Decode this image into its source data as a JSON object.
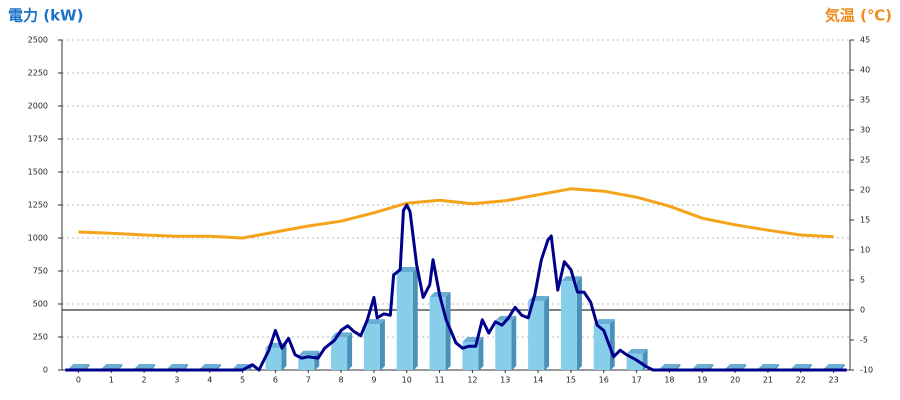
{
  "chart_data": {
    "type": "bar",
    "y_axis_title": "電力 (kW)",
    "y2_axis_title": "気温 (℃)",
    "categories": [
      "0",
      "1",
      "2",
      "3",
      "4",
      "5",
      "6",
      "7",
      "8",
      "9",
      "10",
      "11",
      "12",
      "13",
      "14",
      "15",
      "16",
      "17",
      "18",
      "19",
      "20",
      "21",
      "22",
      "23"
    ],
    "series": [
      {
        "type": "bar",
        "color": "#87ceeb",
        "values": [
          0,
          0,
          0,
          0,
          0,
          0,
          160,
          100,
          240,
          340,
          735,
          545,
          205,
          365,
          515,
          665,
          340,
          115,
          0,
          0,
          0,
          0,
          0,
          0
        ]
      },
      {
        "type": "line",
        "color": "#00008b",
        "x": [
          -0.4,
          5.0,
          5.3,
          5.5,
          5.8,
          6.0,
          6.2,
          6.4,
          6.6,
          6.8,
          7.0,
          7.3,
          7.5,
          7.8,
          8.0,
          8.2,
          8.4,
          8.6,
          8.8,
          9.0,
          9.1,
          9.3,
          9.5,
          9.6,
          9.8,
          9.9,
          10.0,
          10.1,
          10.3,
          10.5,
          10.7,
          10.8,
          11.0,
          11.2,
          11.5,
          11.7,
          11.9,
          12.1,
          12.3,
          12.5,
          12.7,
          12.9,
          13.1,
          13.3,
          13.5,
          13.7,
          13.9,
          14.1,
          14.3,
          14.4,
          14.6,
          14.8,
          15.0,
          15.2,
          15.4,
          15.6,
          15.8,
          16.0,
          16.3,
          16.5,
          16.7,
          17.0,
          17.3,
          17.5,
          23.4
        ],
        "values": [
          0,
          0,
          40,
          0,
          150,
          300,
          165,
          240,
          115,
          90,
          100,
          90,
          165,
          225,
          300,
          335,
          290,
          260,
          380,
          550,
          395,
          425,
          415,
          720,
          760,
          1210,
          1250,
          1200,
          800,
          550,
          645,
          835,
          570,
          380,
          205,
          165,
          180,
          180,
          380,
          280,
          365,
          340,
          395,
          475,
          415,
          395,
          570,
          835,
          985,
          1015,
          605,
          820,
          760,
          590,
          590,
          515,
          340,
          300,
          100,
          150,
          115,
          75,
          25,
          0,
          0
        ]
      },
      {
        "type": "line",
        "axis": "y2",
        "color": "#f5a31a",
        "values": [
          13,
          12.8,
          12.5,
          12.3,
          12.3,
          12,
          13,
          14,
          14.8,
          16.2,
          17.8,
          18.3,
          17.7,
          18.2,
          19.2,
          20.2,
          19.8,
          18.8,
          17.3,
          15.3,
          14.2,
          13.3,
          12.5,
          12.2
        ]
      }
    ],
    "ylim": [
      0,
      2500
    ],
    "yticks": [
      0,
      250,
      500,
      750,
      1000,
      1250,
      1500,
      1750,
      2000,
      2250,
      2500
    ],
    "y2lim": [
      -10,
      45
    ],
    "y2ticks": [
      -10,
      -5,
      0,
      5,
      10,
      15,
      20,
      25,
      30,
      35,
      40,
      45
    ],
    "grid": true
  }
}
